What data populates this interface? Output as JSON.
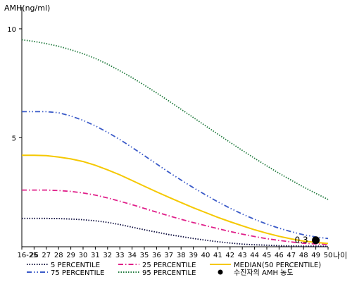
{
  "chart_data": {
    "type": "line",
    "ylabel": "AMH(ng/ml)",
    "xlabel": "나이",
    "categories": [
      "16-25",
      "26",
      "27",
      "28",
      "29",
      "30",
      "31",
      "32",
      "33",
      "34",
      "35",
      "36",
      "37",
      "38",
      "39",
      "40",
      "41",
      "42",
      "43",
      "44",
      "45",
      "46",
      "47",
      "48",
      "49",
      "50"
    ],
    "ylim": [
      0,
      11
    ],
    "yticks": [
      {
        "value": 5,
        "label": "5"
      },
      {
        "value": 10,
        "label": "10"
      }
    ],
    "series": [
      {
        "name": "5 PERCENTILE",
        "color": "#0a0a3c",
        "dash": "dotted",
        "values": [
          1.3,
          1.3,
          1.3,
          1.29,
          1.27,
          1.24,
          1.19,
          1.12,
          1.02,
          0.9,
          0.78,
          0.67,
          0.56,
          0.47,
          0.38,
          0.3,
          0.23,
          0.17,
          0.12,
          0.09,
          0.07,
          0.05,
          0.04,
          0.03,
          0.03,
          0.02
        ]
      },
      {
        "name": "25 PERCENTILE",
        "color": "#e0208a",
        "dash": "dashdot",
        "values": [
          2.6,
          2.6,
          2.6,
          2.58,
          2.54,
          2.47,
          2.37,
          2.24,
          2.09,
          1.93,
          1.76,
          1.59,
          1.42,
          1.26,
          1.11,
          0.97,
          0.83,
          0.7,
          0.58,
          0.47,
          0.37,
          0.29,
          0.22,
          0.16,
          0.13,
          0.1
        ]
      },
      {
        "name": "MEDIAN(50 PERCENTILE)",
        "color": "#f5c800",
        "dash": "solid",
        "values": [
          4.2,
          4.2,
          4.18,
          4.12,
          4.03,
          3.91,
          3.74,
          3.53,
          3.3,
          3.04,
          2.78,
          2.52,
          2.27,
          2.03,
          1.79,
          1.57,
          1.35,
          1.15,
          0.96,
          0.78,
          0.62,
          0.48,
          0.36,
          0.26,
          0.2,
          0.15
        ]
      },
      {
        "name": "75 PERCENTILE",
        "color": "#3a5ac8",
        "dash": "dashdotdot",
        "values": [
          6.2,
          6.2,
          6.2,
          6.15,
          6.0,
          5.8,
          5.55,
          5.25,
          4.92,
          4.56,
          4.18,
          3.8,
          3.42,
          3.06,
          2.71,
          2.38,
          2.06,
          1.77,
          1.5,
          1.26,
          1.04,
          0.85,
          0.69,
          0.55,
          0.45,
          0.38
        ]
      },
      {
        "name": "95 PERCENTILE",
        "color": "#1f7a3c",
        "dash": "dotted",
        "values": [
          9.5,
          9.42,
          9.32,
          9.2,
          9.04,
          8.86,
          8.64,
          8.38,
          8.08,
          7.76,
          7.42,
          7.06,
          6.69,
          6.31,
          5.93,
          5.55,
          5.17,
          4.79,
          4.42,
          4.06,
          3.71,
          3.37,
          3.05,
          2.74,
          2.45,
          2.17
        ]
      }
    ],
    "point": {
      "name": "수진자의 AMH 농도",
      "x": "49",
      "y": 0.3,
      "label": "0.3",
      "color": "#000000"
    },
    "legend": {
      "placement": "bottom",
      "items": [
        {
          "label": "5 PERCENTILE"
        },
        {
          "label": "25 PERCENTILE"
        },
        {
          "label": "MEDIAN(50 PERCENTILE)"
        },
        {
          "label": "75 PERCENTILE"
        },
        {
          "label": "95 PERCENTILE"
        },
        {
          "label": "수진자의 AMH 농도"
        }
      ]
    },
    "grid": false
  }
}
